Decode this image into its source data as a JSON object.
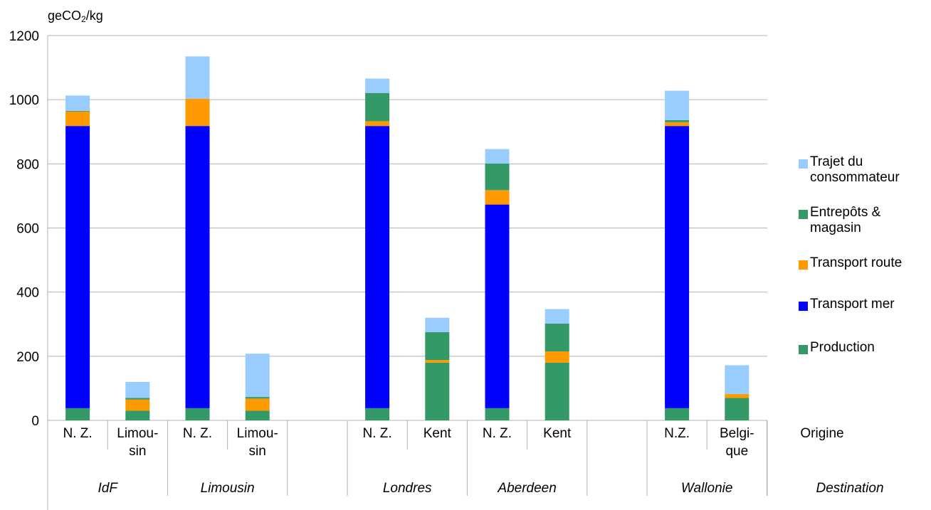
{
  "chart_data": {
    "type": "bar",
    "stacked": true,
    "ylabel": {
      "prefix": "geCO",
      "sub": "2",
      "suffix": "/kg"
    },
    "ylim": [
      0,
      1200
    ],
    "yticks": [
      "0",
      "200",
      "400",
      "600",
      "800",
      "1000",
      "1200"
    ],
    "grid": true,
    "legend_position": "right",
    "categories": [
      "N. Z.",
      "Limou-\nsin",
      "N. Z.",
      "Limou-\nsin",
      "",
      "N. Z.",
      "Kent",
      "N. Z.",
      "Kent",
      "",
      "N.Z.",
      "Belgi-\nque"
    ],
    "origin_axis_label": "Origine",
    "groups": [
      {
        "label": "IdF",
        "categories": [
          0,
          1
        ]
      },
      {
        "label": "Limousin",
        "categories": [
          2,
          3
        ]
      },
      {
        "label": "Londres",
        "categories": [
          5,
          6
        ]
      },
      {
        "label": "Aberdeen",
        "categories": [
          7,
          8
        ]
      },
      {
        "label": "Wallonie",
        "categories": [
          10,
          11
        ]
      }
    ],
    "destination_axis_label": "Destination",
    "series": [
      {
        "name": "Production",
        "color": "#339966",
        "values": [
          38,
          30,
          38,
          30,
          null,
          38,
          180,
          38,
          180,
          null,
          38,
          70
        ]
      },
      {
        "name": "Transport mer",
        "color": "#0000ff",
        "values": [
          880,
          0,
          880,
          0,
          null,
          880,
          0,
          635,
          0,
          null,
          880,
          0
        ]
      },
      {
        "name": "Transport route",
        "color": "#ff9900",
        "values": [
          45,
          35,
          85,
          38,
          null,
          15,
          8,
          45,
          35,
          null,
          12,
          12
        ]
      },
      {
        "name": "Entrepôts & magasin",
        "color": "#339966",
        "values": [
          2,
          5,
          0,
          5,
          null,
          88,
          87,
          83,
          87,
          null,
          6,
          0
        ]
      },
      {
        "name": "Trajet du consommateur",
        "color": "#99ccff",
        "values": [
          48,
          50,
          132,
          135,
          null,
          45,
          45,
          45,
          45,
          null,
          92,
          90
        ]
      }
    ],
    "legend": [
      {
        "label": "Trajet du\nconsommateur",
        "color": "#99ccff"
      },
      {
        "label": "Entrepôts &\nmagasin",
        "color": "#339966"
      },
      {
        "label": "Transport route",
        "color": "#ff9900"
      },
      {
        "label": "Transport mer",
        "color": "#0000ff"
      },
      {
        "label": "Production",
        "color": "#339966"
      }
    ]
  }
}
